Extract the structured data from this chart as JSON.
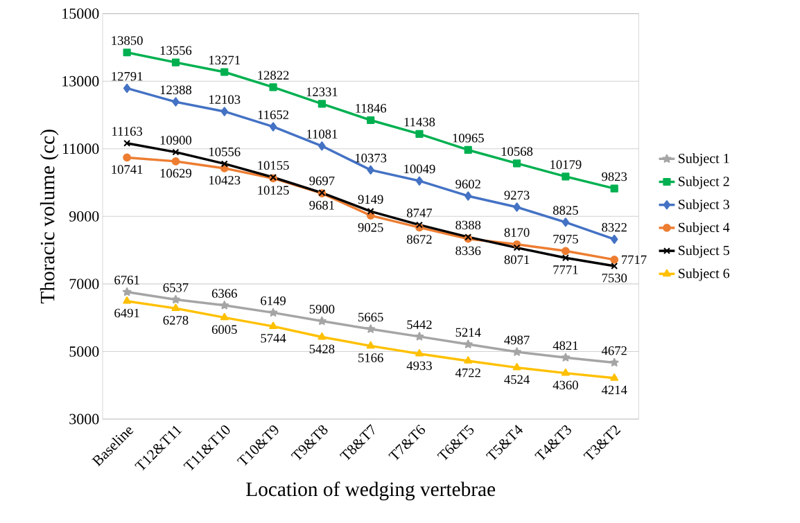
{
  "chart_data": {
    "type": "line",
    "xlabel": "Location of wedging vertebrae",
    "ylabel": "Thoracic volume (cc)",
    "categories": [
      "Baseline",
      "T12&T11",
      "T11&T10",
      "T10&T9",
      "T9&T8",
      "T8&T7",
      "T7&T6",
      "T6&T5",
      "T5&T4",
      "T4&T3",
      "T3&T2"
    ],
    "series": [
      {
        "name": "Subject 1",
        "color": "#a5a5a5",
        "marker": "star",
        "values": [
          6761,
          6537,
          6366,
          6149,
          5900,
          5665,
          5442,
          5214,
          4987,
          4821,
          4672
        ]
      },
      {
        "name": "Subject 2",
        "color": "#00b050",
        "marker": "square",
        "values": [
          13850,
          13556,
          13271,
          12822,
          12331,
          11846,
          11438,
          10965,
          10568,
          10179,
          9823
        ]
      },
      {
        "name": "Subject 3",
        "color": "#4472c4",
        "marker": "diamond",
        "values": [
          12791,
          12388,
          12103,
          11652,
          11081,
          10373,
          10049,
          9602,
          9273,
          8825,
          8322
        ]
      },
      {
        "name": "Subject 4",
        "color": "#ed7d31",
        "marker": "circle",
        "values": [
          10741,
          10629,
          10423,
          10125,
          9681,
          9025,
          8672,
          8336,
          8170,
          7975,
          7717
        ]
      },
      {
        "name": "Subject 5",
        "color": "#000000",
        "marker": "cross",
        "values": [
          11163,
          10900,
          10556,
          10155,
          9697,
          9149,
          8747,
          8388,
          8071,
          7771,
          7530
        ]
      },
      {
        "name": "Subject 6",
        "color": "#ffc000",
        "marker": "triangle",
        "values": [
          6491,
          6278,
          6005,
          5744,
          5428,
          5166,
          4933,
          4722,
          4524,
          4360,
          4214
        ]
      }
    ],
    "ylim": [
      3000,
      15000
    ],
    "yticks": [
      3000,
      5000,
      7000,
      9000,
      11000,
      13000,
      15000
    ],
    "grid": "y",
    "legend": "right",
    "data_labels": true,
    "line_style": "solid"
  }
}
